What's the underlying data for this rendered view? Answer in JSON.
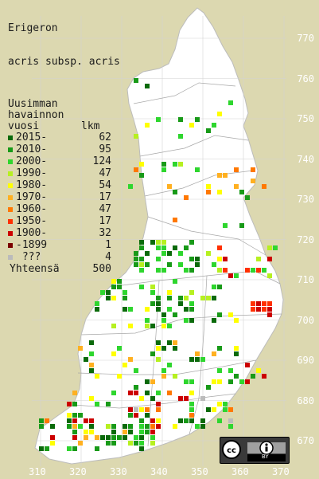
{
  "title": [
    "Erigeron",
    "acris subsp. acris"
  ],
  "legend": {
    "header": [
      "Uusimman",
      "havainnon",
      "vuosi"
    ],
    "count_header": "lkm",
    "items": [
      {
        "label": "2015-",
        "count": "62",
        "color": "#0a6a0a"
      },
      {
        "label": "2010-",
        "count": "95",
        "color": "#189a18"
      },
      {
        "label": "2000-",
        "count": "124",
        "color": "#2ed62e"
      },
      {
        "label": "1990-",
        "count": "47",
        "color": "#b6f020"
      },
      {
        "label": "1980-",
        "count": "54",
        "color": "#ffff00"
      },
      {
        "label": "1970-",
        "count": "17",
        "color": "#ffb020"
      },
      {
        "label": "1960-",
        "count": "47",
        "color": "#ff7800"
      },
      {
        "label": "1950-",
        "count": "17",
        "color": "#ff3000"
      },
      {
        "label": "1900-",
        "count": "32",
        "color": "#cc0000"
      },
      {
        "label": "-1899",
        "count": "1",
        "color": "#7a0000"
      },
      {
        "label": " ???",
        "count": "4",
        "color": "#bbbbbb"
      }
    ],
    "total_label": "Yhteensä",
    "total": "500"
  },
  "axes": {
    "y_ticks": [
      "770",
      "760",
      "750",
      "740",
      "730",
      "720",
      "710",
      "700",
      "690",
      "680",
      "670"
    ],
    "x_ticks": [
      "310",
      "320",
      "330",
      "340",
      "350",
      "360",
      "370"
    ]
  },
  "license": {
    "icon": "cc-icon",
    "label": "BY"
  }
}
